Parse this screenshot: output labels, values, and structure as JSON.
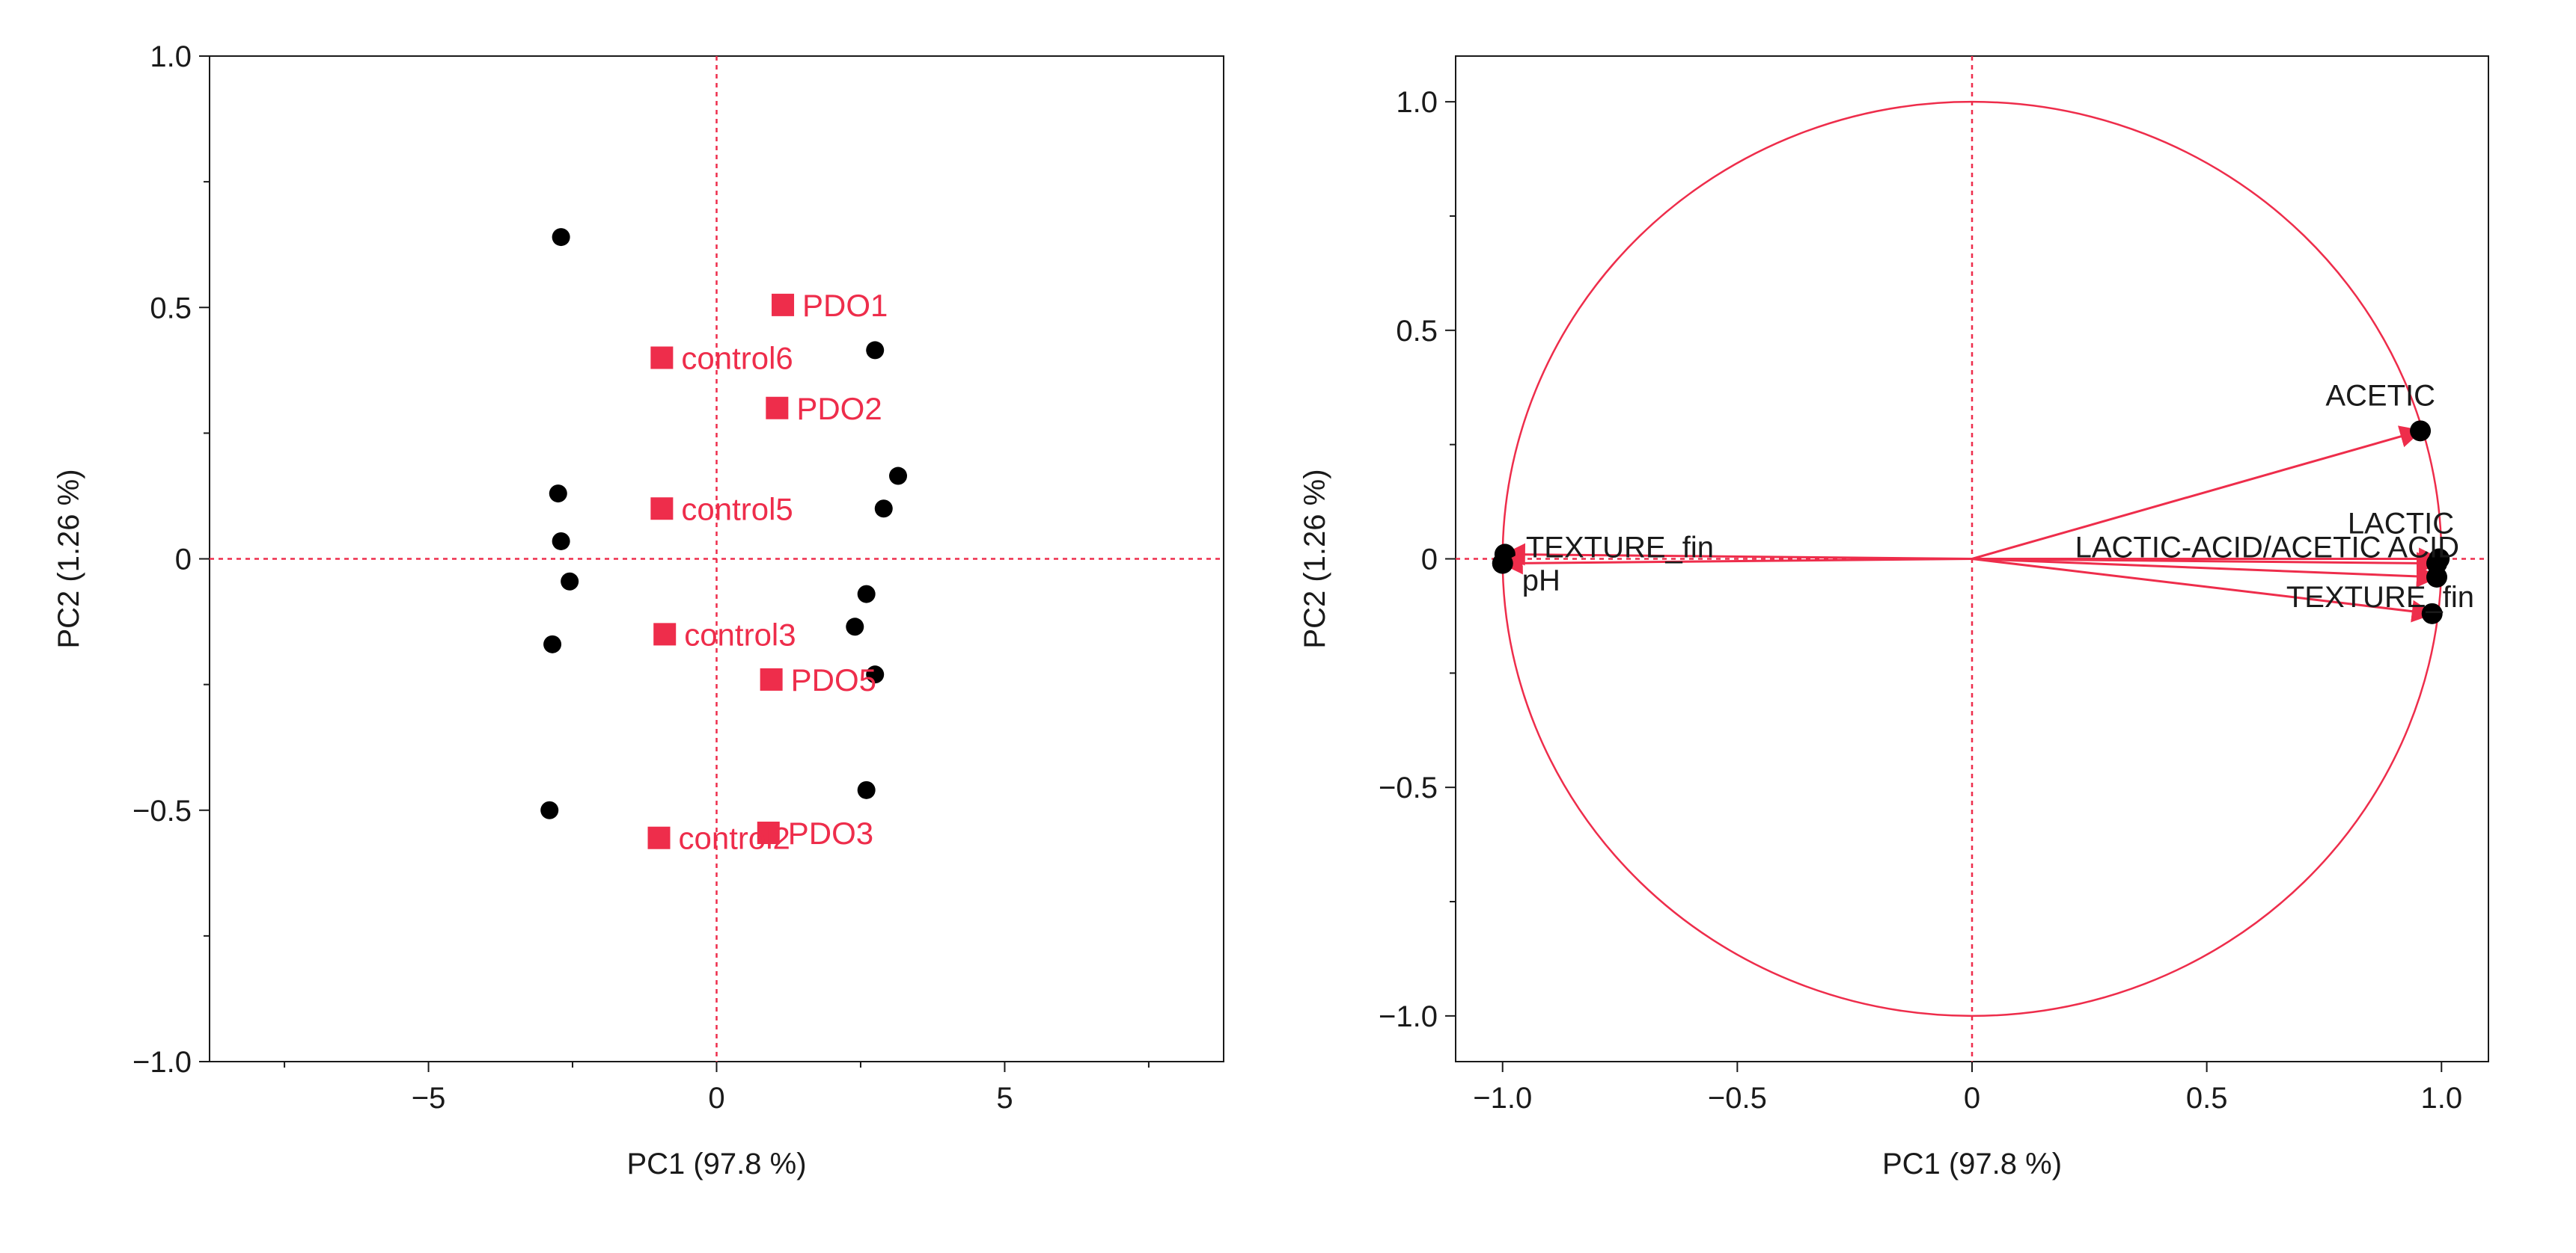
{
  "colors": {
    "accent": "#ee2d4b",
    "point": "#000000",
    "frame": "#1a1a1a",
    "text": "#1a1a1a",
    "background": "#ffffff"
  },
  "chart_data": [
    {
      "type": "scatter",
      "name": "score-plot",
      "xlabel": "PC1  (97.8 %)",
      "ylabel": "PC2  (1.26 %)",
      "xlim": [
        -8.8,
        8.8
      ],
      "ylim": [
        -1.0,
        1.0
      ],
      "xticks": [
        -5,
        0,
        5
      ],
      "xtick_labels": [
        "−5",
        "0",
        "5"
      ],
      "yticks": [
        -1.0,
        -0.5,
        0,
        0.5,
        1.0
      ],
      "ytick_labels": [
        "−1.0",
        "−0.5",
        "0",
        "0.5",
        "1.0"
      ],
      "reference_lines": {
        "x": 0,
        "y": 0,
        "style": "dotted"
      },
      "points": [
        {
          "x": -2.7,
          "y": 0.64
        },
        {
          "x": -2.75,
          "y": 0.13
        },
        {
          "x": -2.7,
          "y": 0.035
        },
        {
          "x": -2.55,
          "y": -0.045
        },
        {
          "x": -2.85,
          "y": -0.17
        },
        {
          "x": -2.9,
          "y": -0.5
        },
        {
          "x": 2.75,
          "y": 0.415
        },
        {
          "x": 3.15,
          "y": 0.165
        },
        {
          "x": 2.9,
          "y": 0.1
        },
        {
          "x": 2.6,
          "y": -0.07
        },
        {
          "x": 2.4,
          "y": -0.135
        },
        {
          "x": 2.75,
          "y": -0.23
        },
        {
          "x": 2.6,
          "y": -0.46
        }
      ],
      "labeled_points": [
        {
          "label": "PDO1",
          "x": 1.15,
          "y": 0.505
        },
        {
          "label": "control6",
          "x": -0.95,
          "y": 0.4
        },
        {
          "label": "PDO2",
          "x": 1.05,
          "y": 0.3
        },
        {
          "label": "control5",
          "x": -0.95,
          "y": 0.1
        },
        {
          "label": "control3",
          "x": -0.9,
          "y": -0.15
        },
        {
          "label": "PDO5",
          "x": 0.95,
          "y": -0.24
        },
        {
          "label": "PDO3",
          "x": 0.9,
          "y": -0.545
        },
        {
          "label": "control2",
          "x": -1.0,
          "y": -0.555
        }
      ]
    },
    {
      "type": "loading",
      "name": "loading-plot",
      "xlabel": "PC1  (97.8 %)",
      "ylabel": "PC2  (1.26 %)",
      "xlim": [
        -1.1,
        1.1
      ],
      "ylim": [
        -1.1,
        1.1
      ],
      "xticks": [
        -1.0,
        -0.5,
        0,
        0.5,
        1.0
      ],
      "xtick_labels": [
        "−1.0",
        "−0.5",
        "0",
        "0.5",
        "1.0"
      ],
      "yticks": [
        -1.0,
        -0.5,
        0,
        0.5,
        1.0
      ],
      "ytick_labels": [
        "−1.0",
        "−0.5",
        "0",
        "0.5",
        "1.0"
      ],
      "reference_lines": {
        "x": 0,
        "y": 0,
        "style": "dotted"
      },
      "unit_circle": true,
      "loadings": [
        {
          "label": "ACETIC",
          "x": 0.955,
          "y": 0.28,
          "label_pos": "above"
        },
        {
          "label": "LACTIC",
          "x": 0.995,
          "y": 0.0,
          "label_pos": "above"
        },
        {
          "label": "LACTIC-ACID/ACETIC ACID",
          "x": 0.99,
          "y": -0.01,
          "label_pos": "left"
        },
        {
          "label": "TEXTURE_fin",
          "x": 0.99,
          "y": -0.04,
          "label_pos": "below-left"
        },
        {
          "label": "",
          "x": 0.98,
          "y": -0.12,
          "label_pos": "none"
        },
        {
          "label": "TEXTURE_fin",
          "x": -0.995,
          "y": 0.01,
          "label_pos": "right"
        },
        {
          "label": "pH",
          "x": -1.0,
          "y": -0.01,
          "label_pos": "below-right"
        }
      ]
    }
  ]
}
